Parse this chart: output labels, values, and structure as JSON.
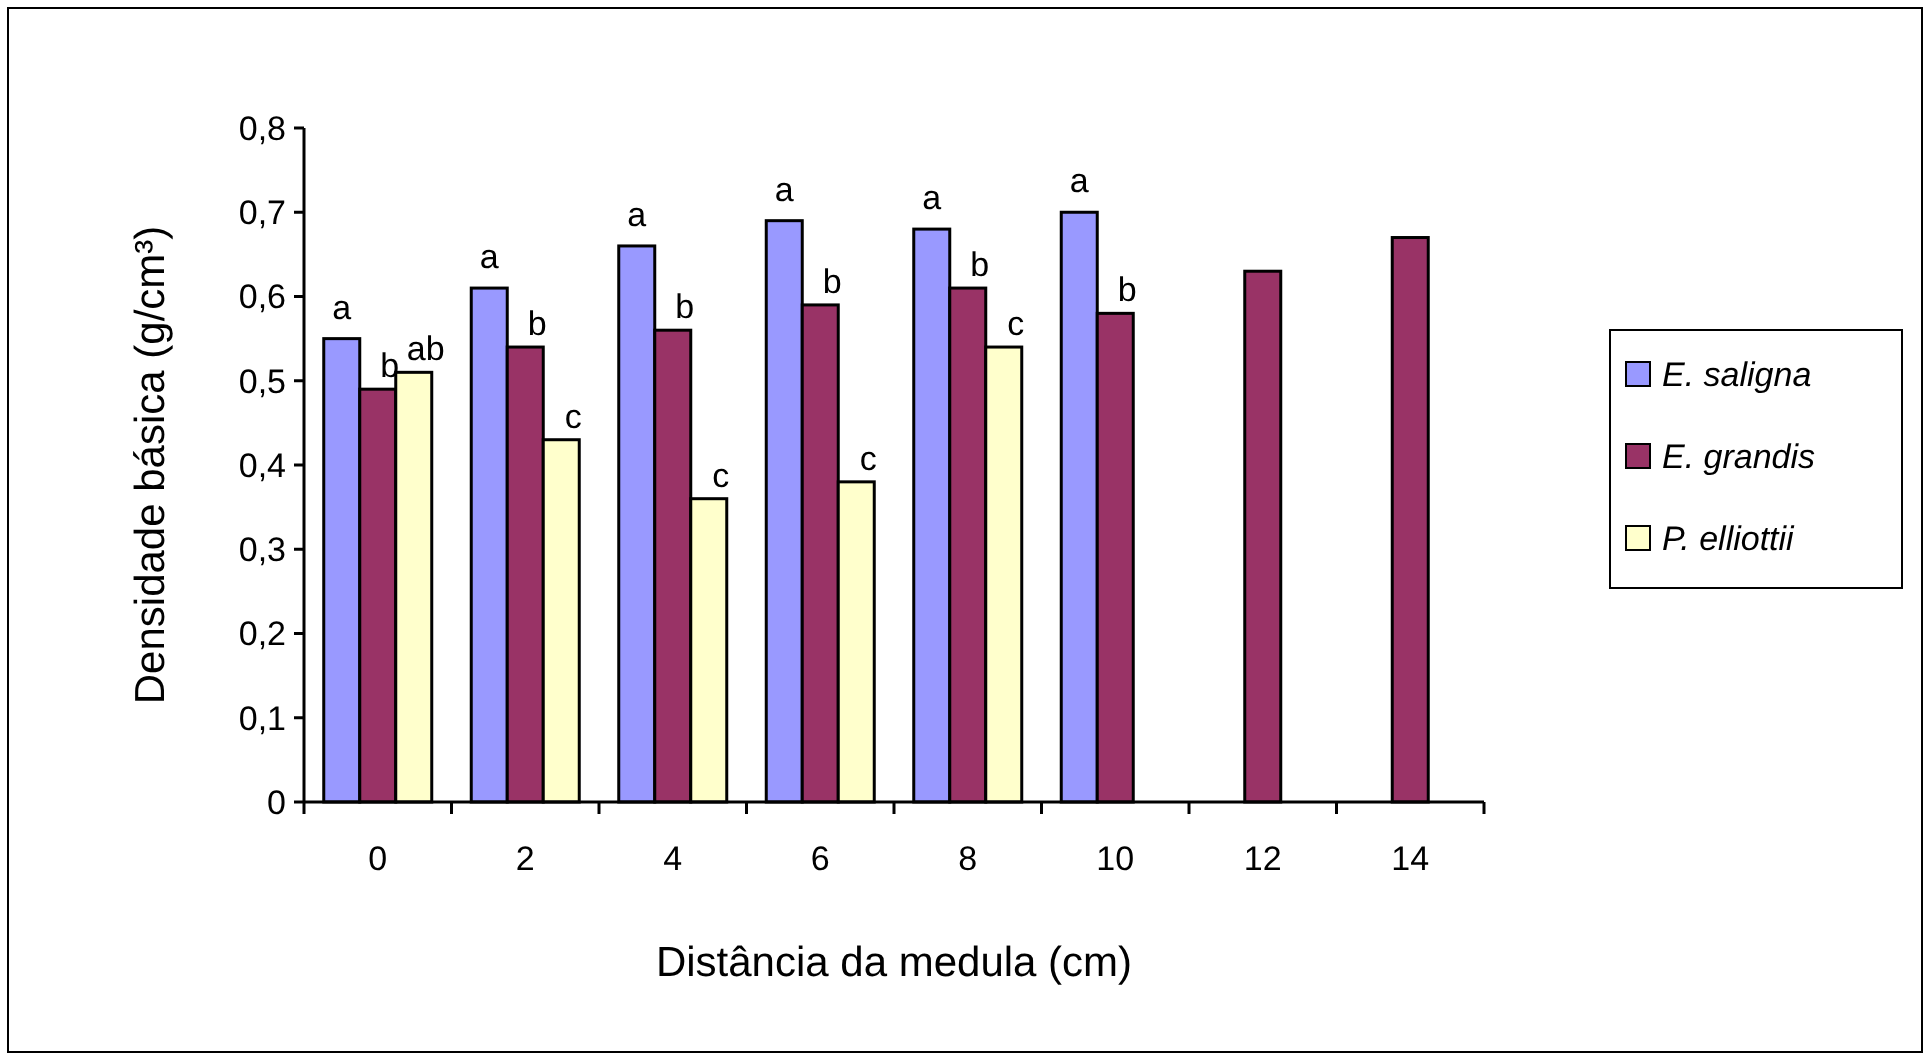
{
  "chart_data": {
    "type": "bar",
    "xlabel": "Distância da medula (cm)",
    "ylabel": "Densidade básica (g/cm³)",
    "categories": [
      "0",
      "2",
      "4",
      "6",
      "8",
      "10",
      "12",
      "14"
    ],
    "series": [
      {
        "name": "E. saligna",
        "color": "#9999ff",
        "values": [
          0.55,
          0.61,
          0.66,
          0.69,
          0.68,
          0.7,
          null,
          null
        ],
        "value_labels": [
          "a",
          "a",
          "a",
          "a",
          "a",
          "a",
          null,
          null
        ]
      },
      {
        "name": "E. grandis",
        "color": "#993366",
        "values": [
          0.49,
          0.54,
          0.56,
          0.59,
          0.61,
          0.58,
          0.63,
          0.67
        ],
        "value_labels": [
          "b",
          "b",
          "b",
          "b",
          "b",
          "b",
          null,
          null
        ]
      },
      {
        "name": "P. elliottii",
        "color": "#ffffcc",
        "values": [
          0.51,
          0.43,
          0.36,
          0.38,
          0.54,
          null,
          null,
          null
        ],
        "value_labels": [
          "ab",
          "c",
          "c",
          "c",
          "c",
          null,
          null,
          null
        ]
      }
    ],
    "ylim": [
      0,
      0.8
    ],
    "yticks": [
      0,
      {
        "value": 0.1,
        "label": "0,1"
      },
      {
        "value": 0.2,
        "label": "0,2"
      },
      {
        "value": 0.3,
        "label": "0,3"
      },
      {
        "value": 0.4,
        "label": "0,4"
      },
      {
        "value": 0.5,
        "label": "0,5"
      },
      {
        "value": 0.6,
        "label": "0,6"
      },
      {
        "value": 0.7,
        "label": "0,7"
      },
      {
        "value": 0.8,
        "label": "0,8"
      }
    ],
    "grid": false,
    "legend": "right"
  }
}
